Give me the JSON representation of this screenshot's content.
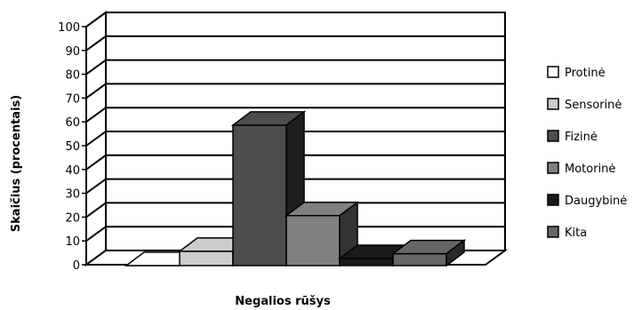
{
  "chart_data": {
    "type": "bar",
    "title": "",
    "xlabel": "Negalios rūšys",
    "ylabel": "Skaičius (procentais)",
    "ylim": [
      0,
      100
    ],
    "yticks": [
      "0",
      "10",
      "20",
      "30",
      "40",
      "50",
      "60",
      "70",
      "80",
      "90",
      "100"
    ],
    "grid": true,
    "legend_position": "right",
    "series": [
      {
        "name": "Protinė",
        "value": 0,
        "color": "#ffffff"
      },
      {
        "name": "Sensorinė",
        "value": 6,
        "color": "#cccccc"
      },
      {
        "name": "Fizinė",
        "value": 59,
        "color": "#4d4d4d"
      },
      {
        "name": "Motorinė",
        "value": 21,
        "color": "#808080"
      },
      {
        "name": "Daugybinė",
        "value": 3,
        "color": "#1a1a1a"
      },
      {
        "name": "Kita",
        "value": 5,
        "color": "#666666"
      }
    ]
  }
}
